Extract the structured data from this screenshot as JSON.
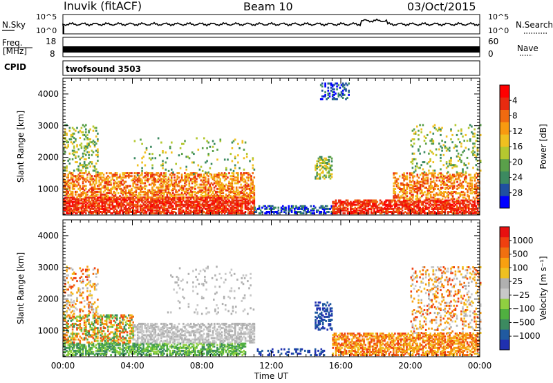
{
  "header": {
    "station": "Inuvik (fitACF)",
    "beam": "Beam 10",
    "date": "03/Oct/2015"
  },
  "summary_panels": {
    "nsky_label": "N.Sky",
    "nsearch_label": "N.Search",
    "noise_ticks_left": [
      "10^5",
      "10^0"
    ],
    "noise_ticks_right": [
      "10^5",
      "10^0"
    ],
    "freq_label": "Freq.",
    "freq_unit": "[MHz]",
    "freq_ticks": [
      "18",
      "8"
    ],
    "nave_label": "Nave",
    "nave_ticks": [
      "60",
      "0"
    ],
    "cpid_label": "CPID",
    "cpid_value": "twofsound 3503"
  },
  "chart_data": [
    {
      "type": "heatmap",
      "name": "power",
      "ylabel": "Slant Range [km]",
      "yticks": [
        "1000",
        "2000",
        "3000",
        "4000"
      ],
      "ylim": [
        180,
        4500
      ],
      "xlim": [
        0,
        24
      ],
      "colorbar_label": "Power [dB]",
      "colorbar_ticks": [
        "4",
        "8",
        "12",
        "16",
        "20",
        "24",
        "28"
      ],
      "colorbar_colors": [
        "#0000ff",
        "#2050a0",
        "#3c8a60",
        "#5aa04a",
        "#b4c830",
        "#f0c020",
        "#f89a10",
        "#f06a10",
        "#e82a10",
        "#ff0000"
      ]
    },
    {
      "type": "heatmap",
      "name": "velocity",
      "ylabel": "Slant Range [km]",
      "yticks": [
        "1000",
        "2000",
        "3000",
        "4000"
      ],
      "ylim": [
        180,
        4500
      ],
      "xlim": [
        0,
        24
      ],
      "colorbar_label": "Velocity [m s⁻¹]",
      "colorbar_ticks": [
        "1000",
        "500",
        "100",
        "25",
        "−25",
        "−100",
        "−500",
        "−1000"
      ],
      "colorbar_colors": [
        "#2030b0",
        "#205aa0",
        "#3c8a60",
        "#50b040",
        "#90d040",
        "#c8c8c8",
        "#b0b0b0",
        "#f0c020",
        "#f8a010",
        "#f07010",
        "#f04010",
        "#e81010"
      ]
    }
  ],
  "xaxis": {
    "label": "Time UT",
    "ticks": [
      "00:00",
      "04:00",
      "08:00",
      "12:00",
      "16:00",
      "20:00",
      "00:00"
    ]
  }
}
